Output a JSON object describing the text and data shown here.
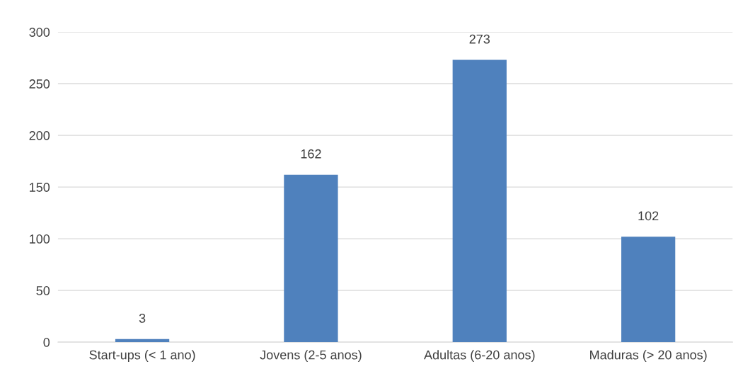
{
  "chart_data": {
    "type": "bar",
    "categories": [
      "Start-ups (< 1 ano)",
      "Jovens (2-5 anos)",
      "Adultas (6-20 anos)",
      "Maduras (> 20 anos)"
    ],
    "values": [
      3,
      162,
      273,
      102
    ],
    "color": "#4f81bd",
    "ylim": [
      0,
      300
    ],
    "yticks": [
      0,
      50,
      100,
      150,
      200,
      250,
      300
    ],
    "grid": "y",
    "data_labels": true
  }
}
